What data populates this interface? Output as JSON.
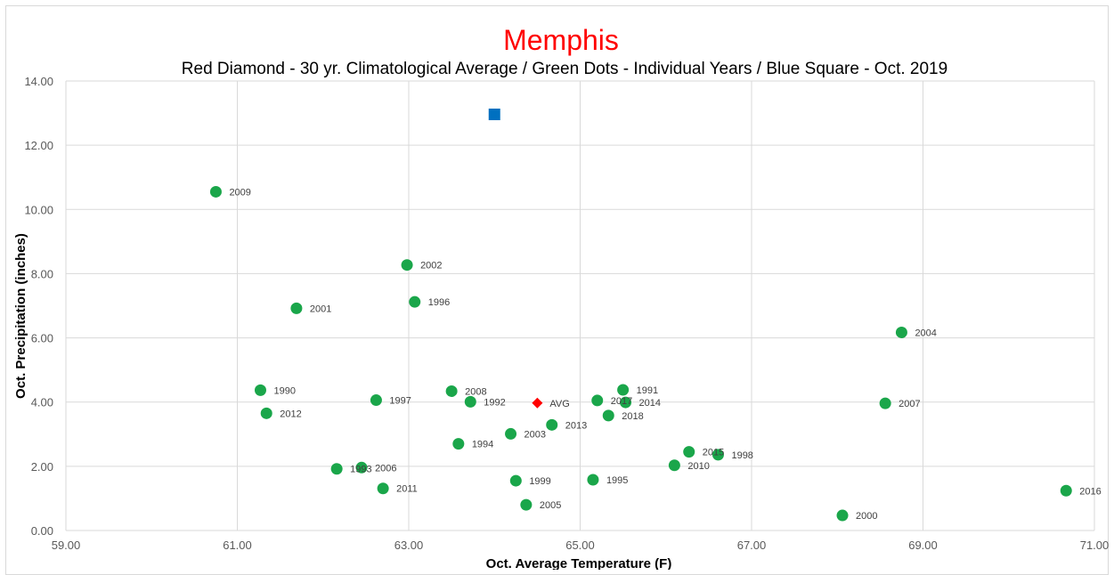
{
  "chart_data": {
    "type": "scatter",
    "title": "Memphis",
    "subtitle": "Red Diamond - 30 yr. Climatological Average / Green Dots - Individual Years / Blue Square - Oct. 2019",
    "xlabel": "Oct. Average Temperature (F)",
    "ylabel": "Oct. Precipitation (inches)",
    "xlim": [
      59,
      71
    ],
    "ylim": [
      0,
      14
    ],
    "x_ticks": [
      "59.00",
      "61.00",
      "63.00",
      "65.00",
      "67.00",
      "69.00",
      "71.00"
    ],
    "y_ticks": [
      "0.00",
      "2.00",
      "4.00",
      "6.00",
      "8.00",
      "10.00",
      "12.00",
      "14.00"
    ],
    "grid": true,
    "colors": {
      "years": "#1aa64a",
      "average": "#ff0000",
      "current": "#0070c0",
      "grid": "#d9d9d9"
    },
    "series": [
      {
        "marker": "circle",
        "points": [
          {
            "label": "2009",
            "x": 60.75,
            "y": 10.55
          },
          {
            "label": "2002",
            "x": 62.98,
            "y": 8.27
          },
          {
            "label": "1996",
            "x": 63.07,
            "y": 7.12
          },
          {
            "label": "2001",
            "x": 61.69,
            "y": 6.92
          },
          {
            "label": "2004",
            "x": 68.75,
            "y": 6.17
          },
          {
            "label": "1990",
            "x": 61.27,
            "y": 4.37
          },
          {
            "label": "2008",
            "x": 63.5,
            "y": 4.34
          },
          {
            "label": "1991",
            "x": 65.5,
            "y": 4.38
          },
          {
            "label": "1997",
            "x": 62.62,
            "y": 4.06
          },
          {
            "label": "1992",
            "x": 63.72,
            "y": 4.01
          },
          {
            "label": "2017",
            "x": 65.2,
            "y": 4.05
          },
          {
            "label": "2014",
            "x": 65.53,
            "y": 3.99
          },
          {
            "label": "2007",
            "x": 68.56,
            "y": 3.96
          },
          {
            "label": "2012",
            "x": 61.34,
            "y": 3.65
          },
          {
            "label": "2018",
            "x": 65.33,
            "y": 3.58
          },
          {
            "label": "2013",
            "x": 64.67,
            "y": 3.29
          },
          {
            "label": "2003",
            "x": 64.19,
            "y": 3.01
          },
          {
            "label": "1994",
            "x": 63.58,
            "y": 2.7
          },
          {
            "label": "2015",
            "x": 66.27,
            "y": 2.45
          },
          {
            "label": "1998",
            "x": 66.61,
            "y": 2.36
          },
          {
            "label": "2010",
            "x": 66.1,
            "y": 2.03
          },
          {
            "label": "1993",
            "x": 62.16,
            "y": 1.92
          },
          {
            "label": "2006",
            "x": 62.45,
            "y": 1.96
          },
          {
            "label": "1995",
            "x": 65.15,
            "y": 1.58
          },
          {
            "label": "1999",
            "x": 64.25,
            "y": 1.55
          },
          {
            "label": "2011",
            "x": 62.7,
            "y": 1.31
          },
          {
            "label": "2016",
            "x": 70.67,
            "y": 1.24
          },
          {
            "label": "2005",
            "x": 64.37,
            "y": 0.8
          },
          {
            "label": "2000",
            "x": 68.06,
            "y": 0.47
          }
        ]
      },
      {
        "marker": "diamond",
        "points": [
          {
            "label": "AVG",
            "x": 64.5,
            "y": 3.97
          }
        ]
      },
      {
        "marker": "square",
        "points": [
          {
            "label": "",
            "x": 64.0,
            "y": 12.96
          }
        ]
      }
    ]
  }
}
